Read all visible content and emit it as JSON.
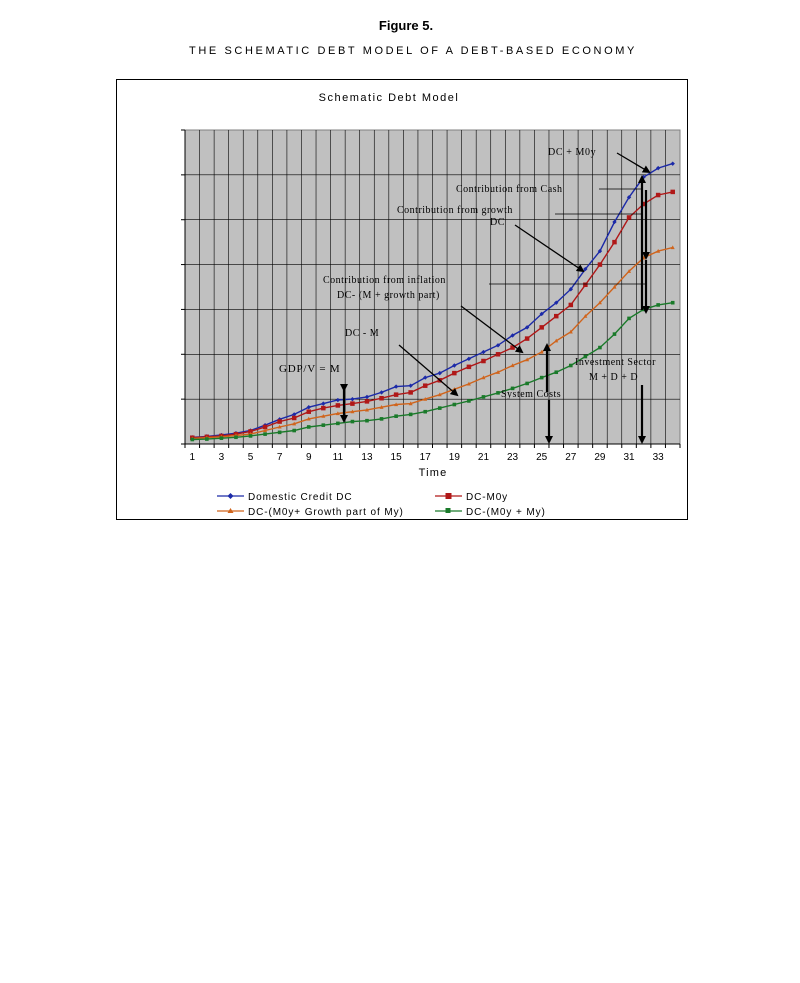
{
  "figure": {
    "label": "Figure 5.",
    "title": "THE SCHEMATIC DEBT MODEL OF A DEBT-BASED ECONOMY"
  },
  "chart_data": {
    "type": "line",
    "title": "Schematic Debt Model",
    "xlabel": "Time",
    "ylabel": "",
    "x": [
      1,
      2,
      3,
      4,
      5,
      6,
      7,
      8,
      9,
      10,
      11,
      12,
      13,
      14,
      15,
      16,
      17,
      18,
      19,
      20,
      21,
      22,
      23,
      24,
      25,
      26,
      27,
      28,
      29,
      30,
      31,
      32,
      33,
      34
    ],
    "x_tick_labels": [
      "1",
      "3",
      "5",
      "7",
      "9",
      "11",
      "13",
      "15",
      "17",
      "19",
      "21",
      "23",
      "25",
      "27",
      "29",
      "31",
      "33"
    ],
    "ylim": [
      0,
      7
    ],
    "y_tick_count": 8,
    "y_tick_labels_shown": false,
    "grid": true,
    "plot_background": "#c0c0c0",
    "legend_position": "bottom",
    "series": [
      {
        "name": "Domestic Credit DC",
        "color": "#1c2aa8",
        "marker": "diamond",
        "values": [
          0.15,
          0.17,
          0.2,
          0.24,
          0.3,
          0.42,
          0.55,
          0.66,
          0.82,
          0.9,
          0.98,
          1.0,
          1.05,
          1.15,
          1.28,
          1.3,
          1.48,
          1.58,
          1.75,
          1.9,
          2.05,
          2.2,
          2.42,
          2.6,
          2.9,
          3.15,
          3.45,
          3.9,
          4.3,
          4.95,
          5.5,
          5.95,
          6.15,
          6.25
        ]
      },
      {
        "name": "DC-M0y",
        "color": "#b01818",
        "marker": "square",
        "values": [
          0.14,
          0.16,
          0.18,
          0.22,
          0.28,
          0.38,
          0.5,
          0.58,
          0.72,
          0.8,
          0.86,
          0.9,
          0.95,
          1.02,
          1.1,
          1.15,
          1.3,
          1.42,
          1.58,
          1.72,
          1.85,
          2.0,
          2.15,
          2.35,
          2.6,
          2.85,
          3.1,
          3.55,
          4.0,
          4.5,
          5.05,
          5.35,
          5.55,
          5.62
        ]
      },
      {
        "name": "DC-(M0y+ Growth part of My)",
        "color": "#d0641c",
        "marker": "triangle",
        "values": [
          0.12,
          0.14,
          0.16,
          0.19,
          0.22,
          0.3,
          0.38,
          0.45,
          0.56,
          0.62,
          0.68,
          0.72,
          0.76,
          0.82,
          0.88,
          0.9,
          1.0,
          1.1,
          1.22,
          1.34,
          1.48,
          1.6,
          1.75,
          1.88,
          2.05,
          2.3,
          2.5,
          2.85,
          3.15,
          3.5,
          3.85,
          4.15,
          4.3,
          4.38
        ]
      },
      {
        "name": "DC-(M0y + My)",
        "color": "#1a7a2a",
        "marker": "square",
        "values": [
          0.1,
          0.11,
          0.13,
          0.15,
          0.18,
          0.22,
          0.26,
          0.3,
          0.38,
          0.42,
          0.46,
          0.5,
          0.52,
          0.56,
          0.62,
          0.66,
          0.72,
          0.8,
          0.88,
          0.96,
          1.05,
          1.14,
          1.24,
          1.35,
          1.48,
          1.6,
          1.75,
          1.95,
          2.15,
          2.45,
          2.8,
          3.0,
          3.1,
          3.15
        ]
      }
    ],
    "annotations": [
      {
        "id": "dc-m0y",
        "text": "DC + M0y"
      },
      {
        "id": "cash",
        "text": "Contribution from Cash"
      },
      {
        "id": "growth1",
        "text": "Contribution from growth"
      },
      {
        "id": "growth2",
        "text": "DC"
      },
      {
        "id": "infl1",
        "text": "Contribution from inflation"
      },
      {
        "id": "infl2",
        "text": "DC- (M + growth part)"
      },
      {
        "id": "dcm",
        "text": "DC - M"
      },
      {
        "id": "gdp",
        "text": "GDP/V = M"
      },
      {
        "id": "syscost",
        "text": "System Costs"
      },
      {
        "id": "inv1",
        "text": "Investment Sector"
      },
      {
        "id": "inv2",
        "text": "M + D + D"
      }
    ]
  }
}
